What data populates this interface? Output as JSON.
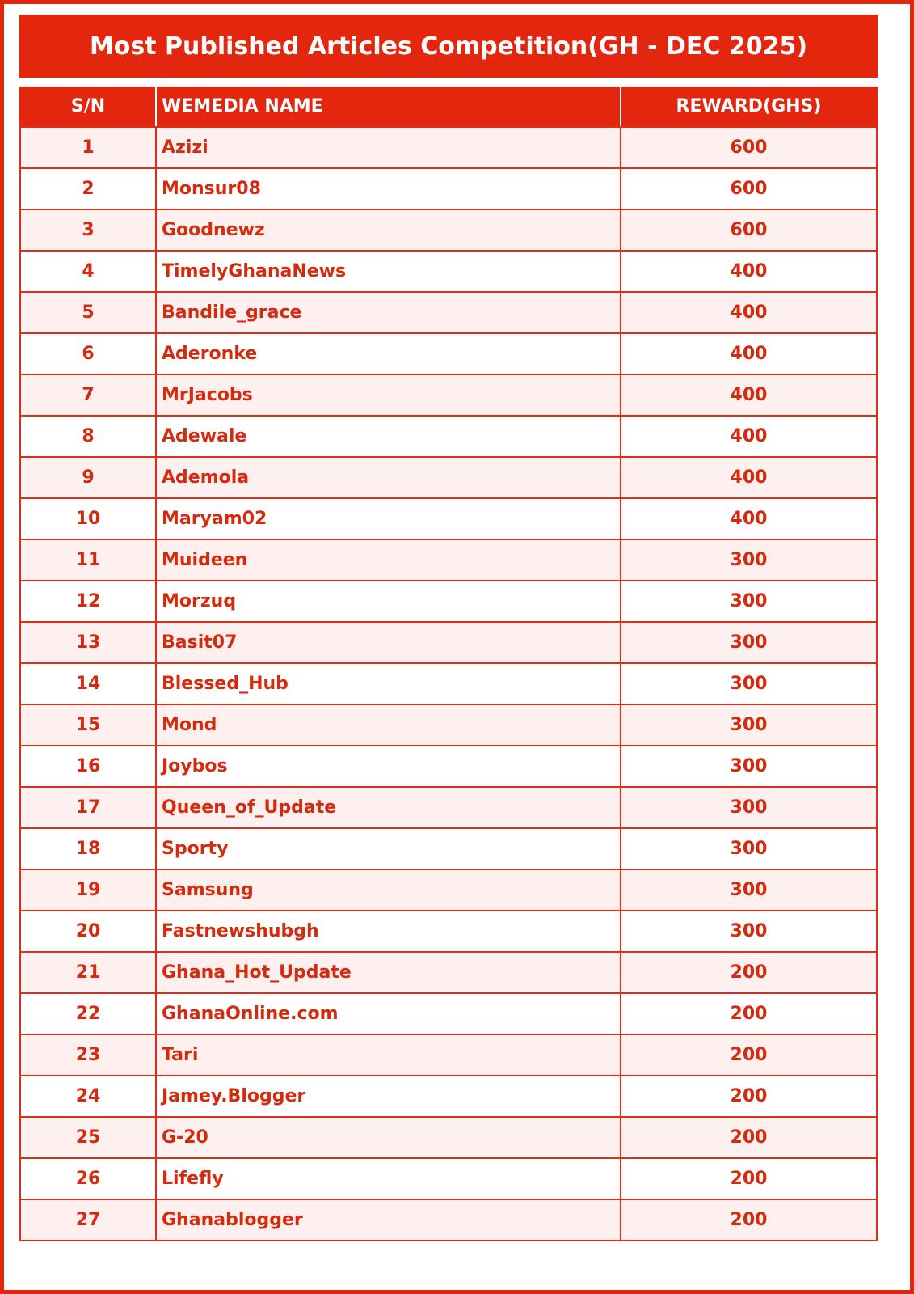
{
  "title": "Most Published Articles Competition(GH - DEC 2025)",
  "table": {
    "headers": [
      "S/N",
      "WEMEDIA NAME",
      "REWARD(GHS)"
    ],
    "rows": [
      [
        1,
        "Azizi",
        600
      ],
      [
        2,
        "Monsur08",
        600
      ],
      [
        3,
        "Goodnewz",
        600
      ],
      [
        4,
        "TimelyGhanaNews",
        400
      ],
      [
        5,
        "Bandile_grace",
        400
      ],
      [
        6,
        "Aderonke",
        400
      ],
      [
        7,
        "MrJacobs",
        400
      ],
      [
        8,
        "Adewale",
        400
      ],
      [
        9,
        "Ademola",
        400
      ],
      [
        10,
        "Maryam02",
        400
      ],
      [
        11,
        "Muideen",
        300
      ],
      [
        12,
        "Morzuq",
        300
      ],
      [
        13,
        "Basit07",
        300
      ],
      [
        14,
        "Blessed_Hub",
        300
      ],
      [
        15,
        "Mond",
        300
      ],
      [
        16,
        "Joybos",
        300
      ],
      [
        17,
        "Queen_of_Update",
        300
      ],
      [
        18,
        "Sporty",
        300
      ],
      [
        19,
        "Samsung",
        300
      ],
      [
        20,
        "Fastnewshubgh",
        300
      ],
      [
        21,
        "Ghana_Hot_Update",
        200
      ],
      [
        22,
        "GhanaOnline.com",
        200
      ],
      [
        23,
        "Tari",
        200
      ],
      [
        24,
        "Jamey.Blogger",
        200
      ],
      [
        25,
        "G-20",
        200
      ],
      [
        26,
        "Lifefly",
        200
      ],
      [
        27,
        "Ghanablogger",
        200
      ]
    ]
  }
}
